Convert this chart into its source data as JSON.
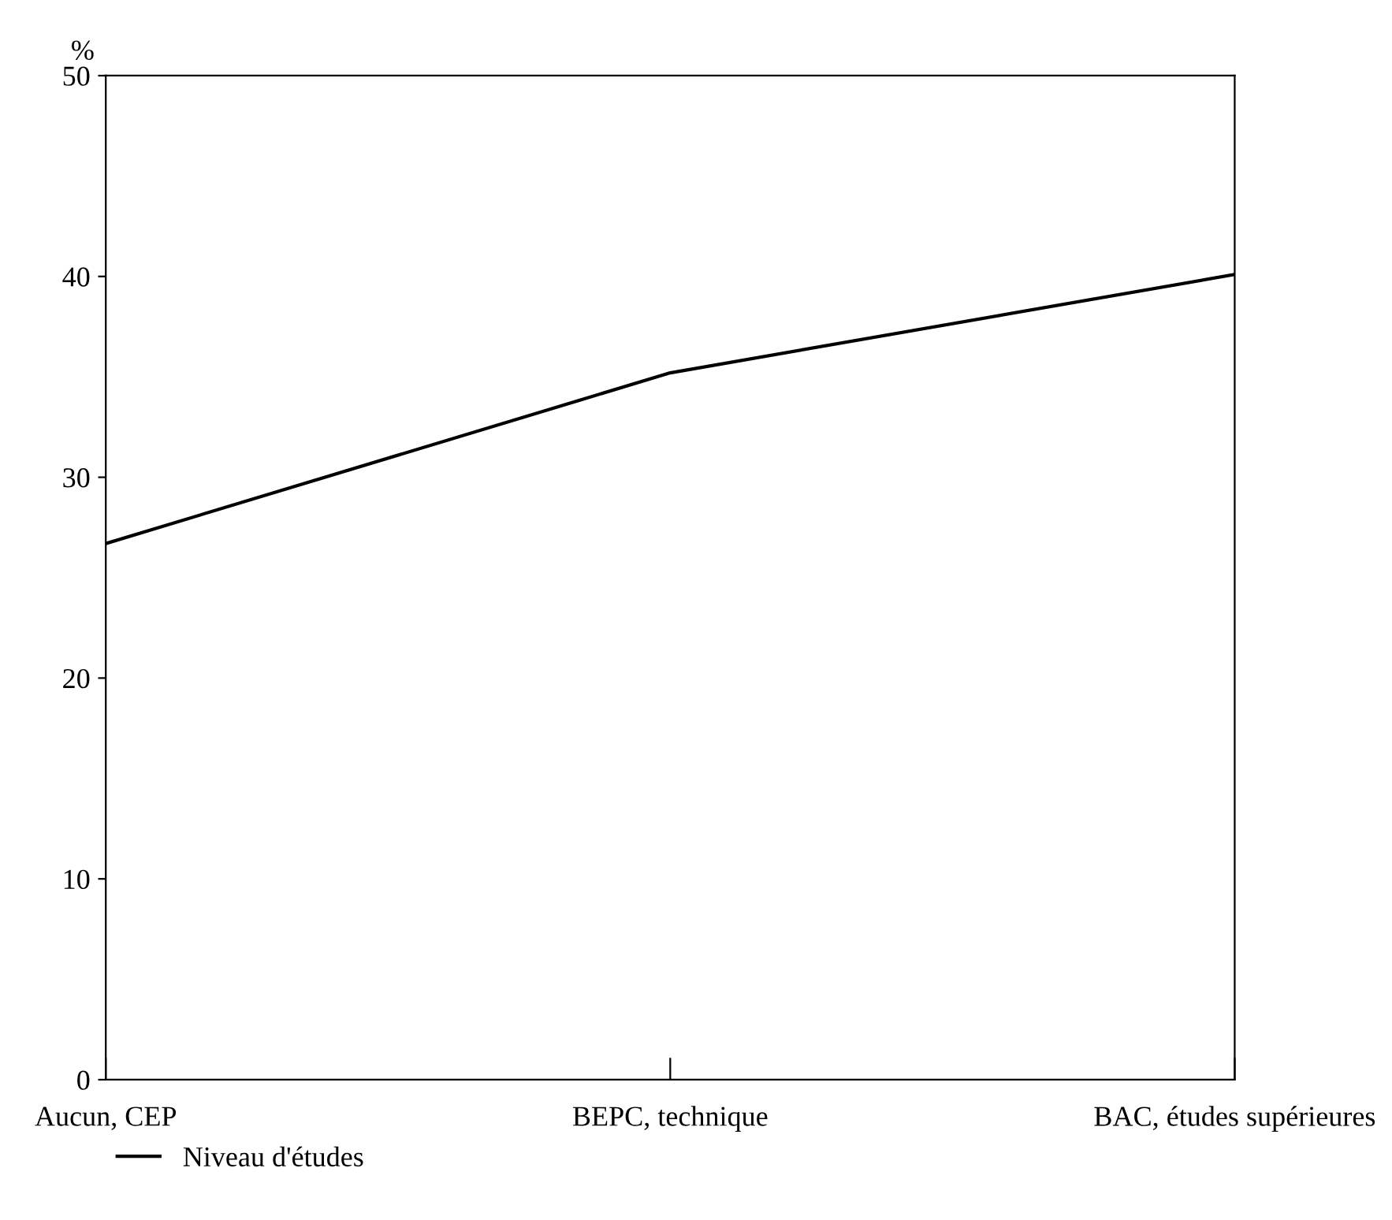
{
  "chart_data": {
    "type": "line",
    "ylabel": "%",
    "categories": [
      "Aucun, CEP",
      "BEPC, technique",
      "BAC, études supérieures"
    ],
    "series": [
      {
        "name": "Niveau d'études",
        "color": "#000000",
        "values": [
          26.7,
          35.2,
          40.1
        ]
      }
    ],
    "ylim": [
      0,
      50
    ],
    "yticks": [
      0,
      10,
      20,
      30,
      40,
      50
    ],
    "grid": false,
    "legend": "bottom left",
    "marker": "none",
    "line_style": "solid"
  }
}
